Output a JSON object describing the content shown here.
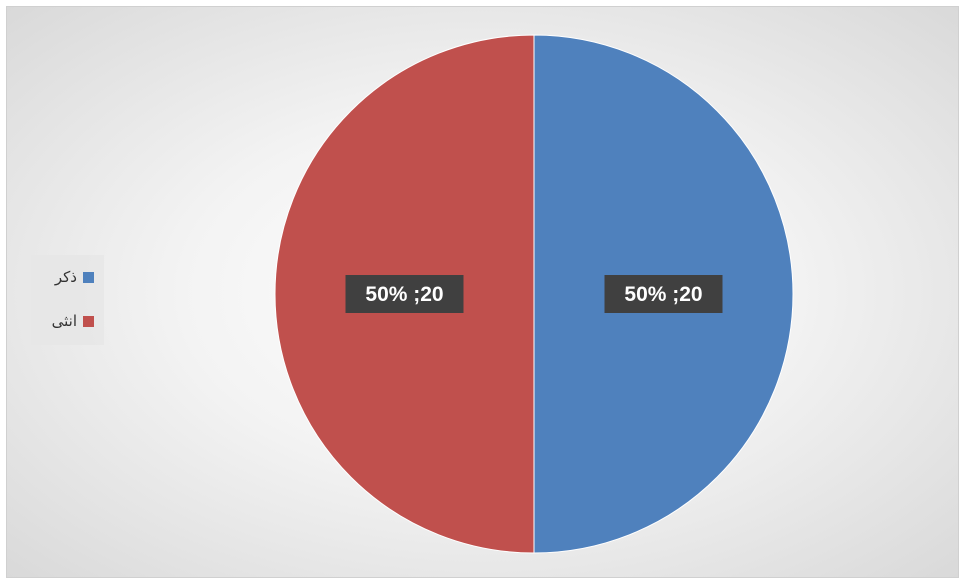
{
  "chart_data": {
    "type": "pie",
    "title": "",
    "slices": [
      {
        "name": "ذكر",
        "value": 20,
        "percent": 50,
        "label": "20; 50%",
        "color": "#4f81bd"
      },
      {
        "name": "انثى",
        "value": 20,
        "percent": 50,
        "label": "20; 50%",
        "color": "#c0504d"
      }
    ],
    "legend_position": "left"
  }
}
